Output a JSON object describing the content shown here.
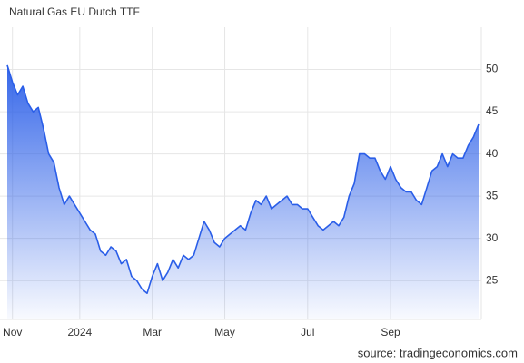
{
  "chart_data": {
    "type": "area",
    "title": "Natural Gas EU Dutch TTF",
    "source": "source: tradingeconomics.com",
    "categories": [
      null,
      "Nov",
      null,
      null,
      null,
      null,
      null,
      null,
      null,
      null,
      null,
      null,
      null,
      null,
      "2024",
      null,
      null,
      null,
      null,
      null,
      null,
      null,
      null,
      null,
      null,
      null,
      null,
      null,
      "Mar",
      null,
      null,
      null,
      null,
      null,
      null,
      null,
      null,
      null,
      null,
      null,
      null,
      null,
      "May",
      null,
      null,
      null,
      null,
      null,
      null,
      null,
      null,
      null,
      null,
      null,
      null,
      null,
      null,
      null,
      "Jul",
      null,
      null,
      null,
      null,
      null,
      null,
      null,
      null,
      null,
      null,
      null,
      null,
      null,
      null,
      null,
      "Sep",
      null,
      null,
      null,
      null,
      null,
      null,
      null,
      null,
      null,
      null,
      null,
      null,
      null,
      null,
      null,
      null,
      null
    ],
    "values": [
      50.5,
      48.5,
      47,
      48,
      46,
      45,
      45.5,
      43,
      40,
      39,
      36,
      34,
      35,
      34,
      33,
      32,
      31,
      30.5,
      28.5,
      28,
      29,
      28.5,
      27,
      27.5,
      25.5,
      25,
      24,
      23.5,
      25.5,
      27,
      25,
      26,
      27.5,
      26.5,
      28,
      27.5,
      28,
      30,
      32,
      31,
      29.5,
      29,
      30,
      30.5,
      31,
      31.5,
      31,
      33,
      34.5,
      34,
      35,
      33.5,
      34,
      34.5,
      35,
      34,
      34,
      33.5,
      33.5,
      32.5,
      31.5,
      31,
      31.5,
      32,
      31.5,
      32.5,
      35,
      36.5,
      40,
      40,
      39.5,
      39.5,
      38,
      37,
      38.5,
      37,
      36,
      35.5,
      35.5,
      34.5,
      34,
      36,
      38,
      38.5,
      40,
      38.5,
      40,
      39.5,
      39.5,
      41,
      42,
      43.5
    ],
    "color": "#2a5ee8",
    "ylim": [
      20.4,
      55
    ],
    "yticks": [
      25,
      30,
      35,
      40,
      45,
      50
    ],
    "grid": true
  }
}
